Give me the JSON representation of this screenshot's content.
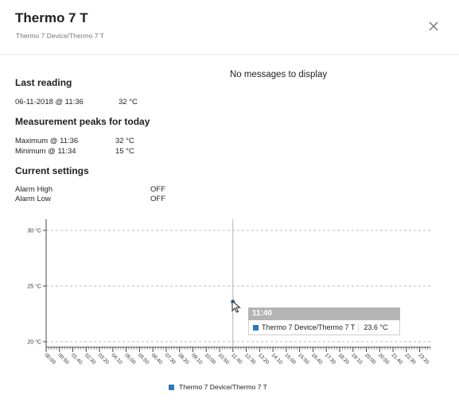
{
  "header": {
    "title": "Thermo 7 T",
    "subtitle": "Thermo 7 Device/Thermo 7 T"
  },
  "messages": {
    "empty_text": "No messages to display"
  },
  "last_reading": {
    "heading": "Last reading",
    "timestamp": "06-11-2018 @ 11:36",
    "value": "32 °C"
  },
  "peaks": {
    "heading": "Measurement peaks for today",
    "maximum_label": "Maximum @ 11:36",
    "maximum_value": "32 °C",
    "minimum_label": "Minimum @ 11:34",
    "minimum_value": "15 °C"
  },
  "settings": {
    "heading": "Current settings",
    "alarm_high_label": "Alarm High",
    "alarm_high_value": "OFF",
    "alarm_low_label": "Alarm Low",
    "alarm_low_value": "OFF"
  },
  "tooltip": {
    "time": "11:40",
    "series_name": "Thermo 7 Device/Thermo 7 T",
    "value": "23.6 °C"
  },
  "chart_data": {
    "type": "line",
    "title": "",
    "xlabel": "",
    "ylabel": "",
    "y_ticks": [
      "30 °C",
      "25 °C",
      "20 °C"
    ],
    "y_tick_values": [
      30,
      25,
      20
    ],
    "ylim": [
      19.5,
      31
    ],
    "x_tick_labels": [
      "00:00",
      "00:50",
      "01:40",
      "02:30",
      "03:20",
      "04:10",
      "05:00",
      "05:50",
      "06:40",
      "07:30",
      "08:20",
      "09:10",
      "10:00",
      "10:50",
      "11:40",
      "12:30",
      "13:20",
      "14:10",
      "15:00",
      "15:50",
      "16:40",
      "17:30",
      "18:20",
      "19:10",
      "20:00",
      "20:50",
      "21:40",
      "22:30",
      "23:20"
    ],
    "x_range_minutes": [
      0,
      1440
    ],
    "grid": "horizontal-dashed",
    "crosshair_x_minutes": 700,
    "series": [
      {
        "name": "Thermo 7 Device/Thermo 7 T",
        "color": "#2b7bb9",
        "points": [
          {
            "x": "11:40",
            "x_minutes": 700,
            "y": 23.6
          }
        ]
      }
    ],
    "legend_position": "bottom-center"
  }
}
